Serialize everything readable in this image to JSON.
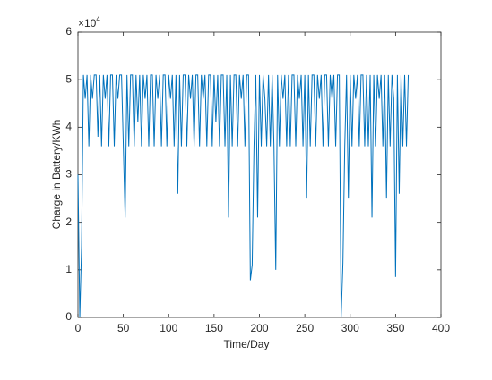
{
  "chart_data": {
    "type": "line",
    "x_label": "Time/Day",
    "y_label": "Charge in Battery/KWh",
    "y_multiplier_base": "×10",
    "y_multiplier_exponent": "4",
    "xlim": [
      0,
      400
    ],
    "xticks": [
      0,
      50,
      100,
      150,
      200,
      250,
      300,
      350,
      400
    ],
    "ylim": [
      0,
      60000
    ],
    "yticks": [
      {
        "value": 0,
        "label": "0"
      },
      {
        "value": 10000,
        "label": "1"
      },
      {
        "value": 20000,
        "label": "2"
      },
      {
        "value": 30000,
        "label": "3"
      },
      {
        "value": 40000,
        "label": "4"
      },
      {
        "value": 50000,
        "label": "5"
      },
      {
        "value": 60000,
        "label": "6"
      }
    ],
    "color": "#0072bd",
    "x": [
      0,
      2,
      4,
      6,
      8,
      10,
      12,
      14,
      16,
      18,
      20,
      22,
      24,
      26,
      28,
      30,
      32,
      34,
      36,
      38,
      40,
      42,
      44,
      46,
      48,
      50,
      52,
      54,
      56,
      58,
      60,
      62,
      64,
      66,
      68,
      70,
      72,
      74,
      76,
      78,
      80,
      82,
      84,
      86,
      88,
      90,
      92,
      94,
      96,
      98,
      100,
      102,
      104,
      106,
      108,
      110,
      112,
      114,
      116,
      118,
      120,
      122,
      124,
      126,
      128,
      130,
      132,
      134,
      136,
      138,
      140,
      142,
      144,
      146,
      148,
      150,
      152,
      154,
      156,
      158,
      160,
      162,
      164,
      166,
      168,
      170,
      172,
      174,
      176,
      178,
      180,
      182,
      184,
      186,
      188,
      190,
      192,
      194,
      196,
      198,
      200,
      202,
      204,
      206,
      208,
      210,
      212,
      214,
      216,
      218,
      220,
      222,
      224,
      226,
      228,
      230,
      232,
      234,
      236,
      238,
      240,
      242,
      244,
      246,
      248,
      250,
      252,
      254,
      256,
      258,
      260,
      262,
      264,
      266,
      268,
      270,
      272,
      274,
      276,
      278,
      280,
      282,
      284,
      286,
      288,
      290,
      292,
      294,
      296,
      298,
      300,
      302,
      304,
      306,
      308,
      310,
      312,
      314,
      316,
      318,
      320,
      322,
      324,
      326,
      328,
      330,
      332,
      334,
      336,
      338,
      340,
      342,
      344,
      346,
      348,
      350,
      352,
      354,
      356,
      358,
      360,
      362,
      364
    ],
    "values": [
      30000,
      0,
      15000,
      51000,
      46000,
      51000,
      36000,
      51000,
      46000,
      51000,
      51000,
      38000,
      51000,
      36000,
      51000,
      46000,
      51000,
      36000,
      51000,
      51000,
      36000,
      51000,
      46000,
      51000,
      51000,
      36000,
      21000,
      51000,
      36000,
      51000,
      51000,
      36000,
      51000,
      41000,
      51000,
      36000,
      51000,
      46000,
      51000,
      36000,
      51000,
      51000,
      36000,
      51000,
      46000,
      51000,
      36000,
      51000,
      51000,
      36000,
      51000,
      46000,
      51000,
      36000,
      51000,
      26000,
      51000,
      36000,
      51000,
      51000,
      36000,
      51000,
      46000,
      51000,
      36000,
      51000,
      51000,
      36000,
      51000,
      46000,
      51000,
      36000,
      51000,
      51000,
      36000,
      51000,
      41000,
      51000,
      36000,
      51000,
      51000,
      36000,
      51000,
      21000,
      51000,
      36000,
      51000,
      51000,
      36000,
      51000,
      46000,
      51000,
      36000,
      51000,
      51000,
      7800,
      11000,
      36000,
      51000,
      21000,
      51000,
      36000,
      51000,
      46000,
      36000,
      51000,
      36000,
      51000,
      36000,
      10000,
      51000,
      36000,
      51000,
      46000,
      51000,
      36000,
      51000,
      36000,
      51000,
      51000,
      36000,
      51000,
      46000,
      51000,
      36000,
      51000,
      25000,
      51000,
      36000,
      51000,
      51000,
      36000,
      51000,
      46000,
      51000,
      36000,
      51000,
      51000,
      36000,
      51000,
      46000,
      51000,
      36000,
      51000,
      51000,
      0,
      11500,
      36000,
      51000,
      25000,
      51000,
      36000,
      51000,
      46000,
      51000,
      36000,
      51000,
      51000,
      36000,
      51000,
      36000,
      51000,
      21000,
      51000,
      36000,
      51000,
      46000,
      51000,
      36000,
      51000,
      25000,
      51000,
      36000,
      51000,
      46000,
      8500,
      51000,
      26000,
      51000,
      36000,
      51000,
      36000,
      51000
    ]
  }
}
